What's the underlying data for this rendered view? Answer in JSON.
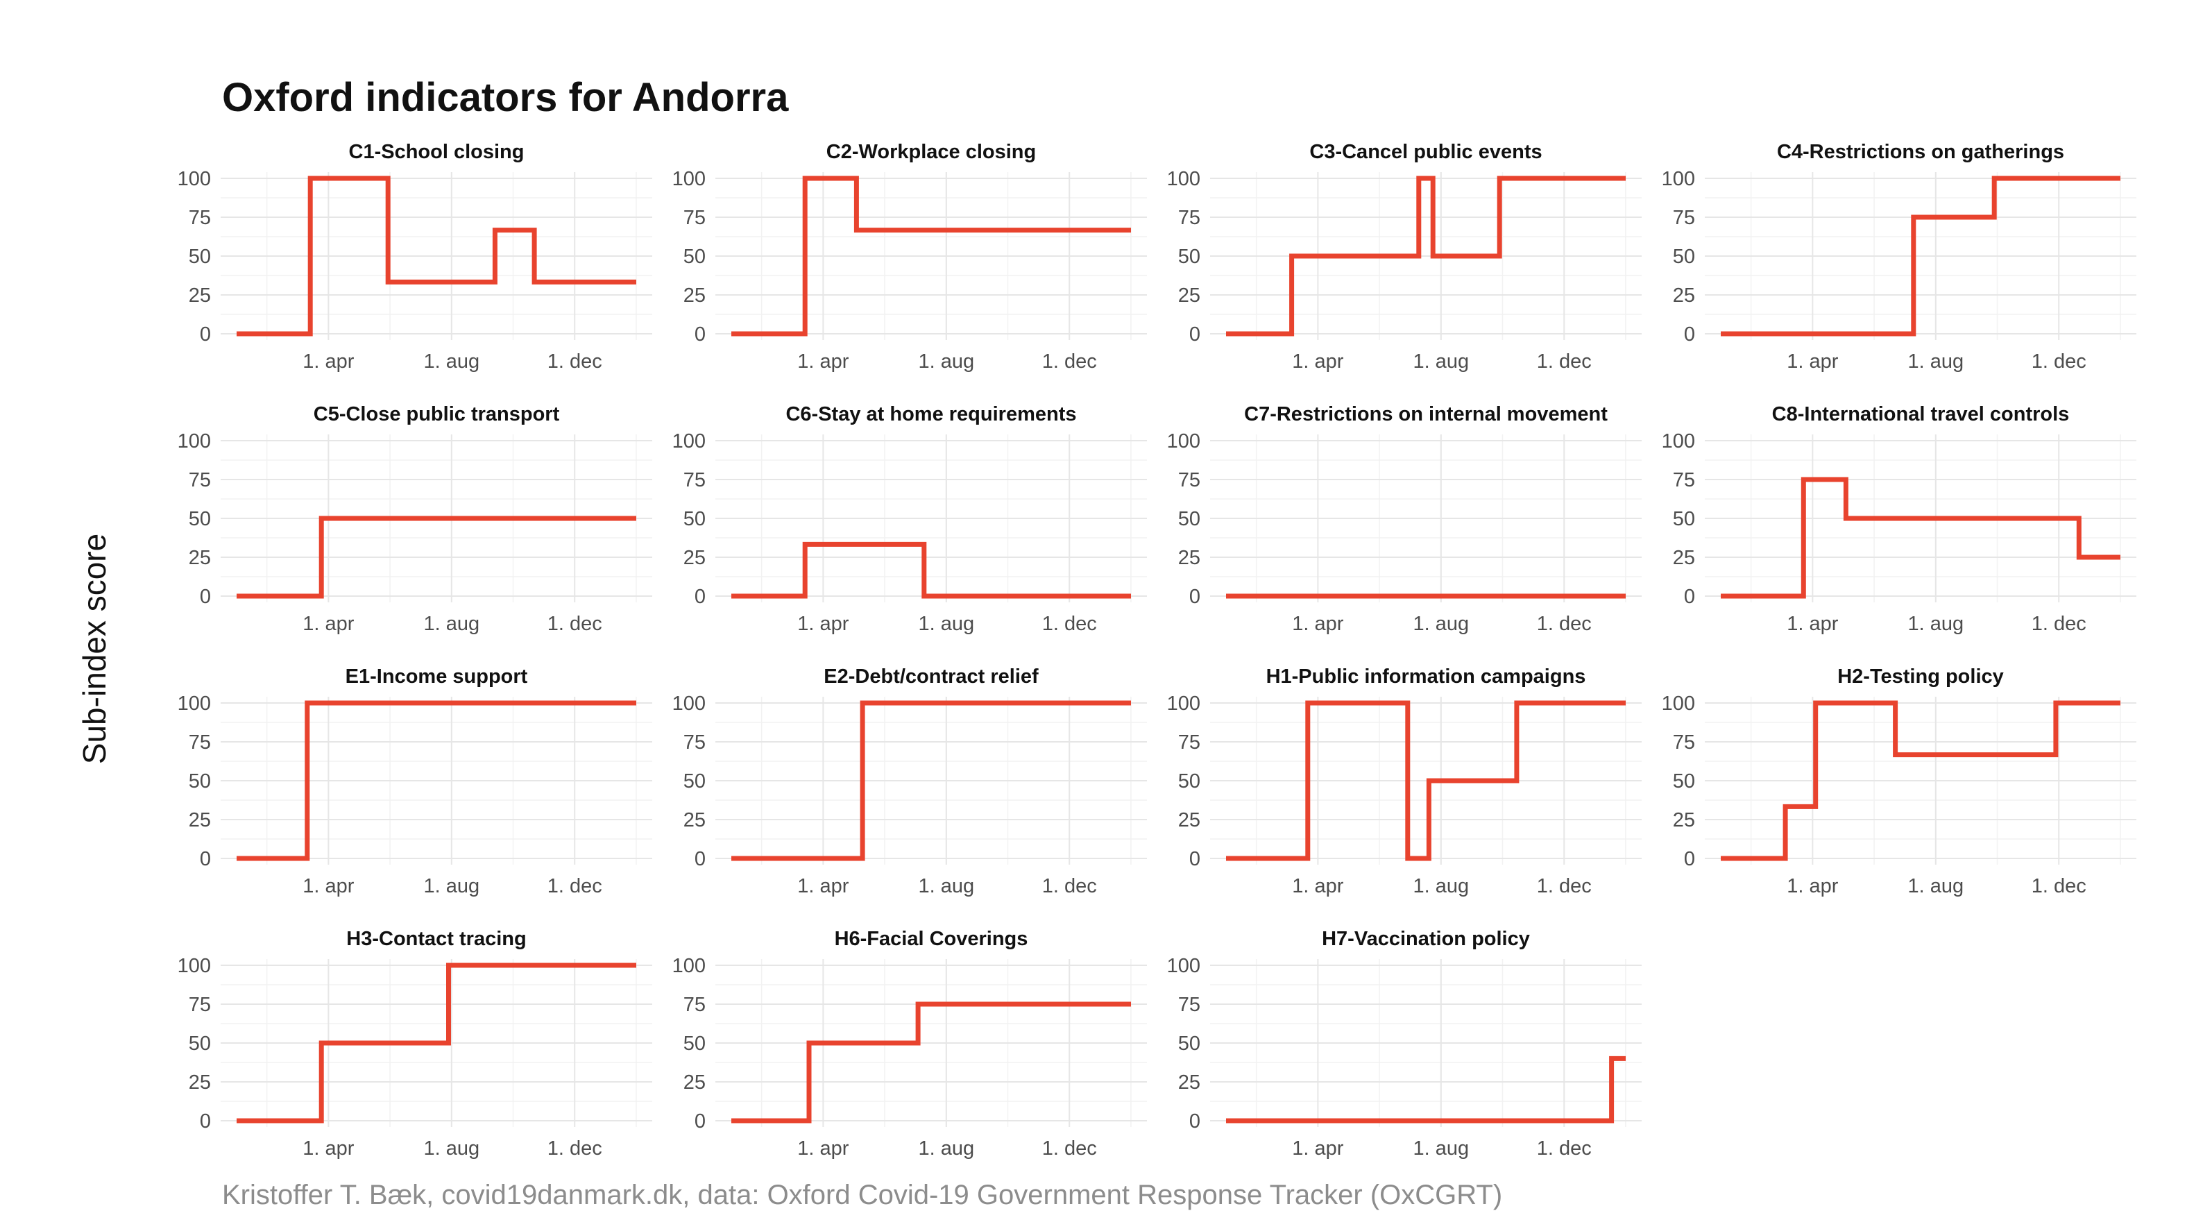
{
  "title": "Oxford indicators for Andorra",
  "ylabel": "Sub-index score",
  "caption": "Kristoffer T. Bæk, covid19danmark.dk, data: Oxford Covid-19 Government Response Tracker (OxCGRT)",
  "colors": {
    "series": "#e8432e"
  },
  "chart_data": {
    "type": "line",
    "facets": 4,
    "x_unit": "date",
    "x_range": [
      "2020-01-01",
      "2021-01-31"
    ],
    "xticks": [
      {
        "date": "2020-04-01",
        "label": "1. apr"
      },
      {
        "date": "2020-08-01",
        "label": "1. aug"
      },
      {
        "date": "2020-12-01",
        "label": "1. dec"
      }
    ],
    "yticks": [
      0,
      25,
      50,
      75,
      100
    ],
    "ylim": [
      0,
      100
    ],
    "panels": [
      {
        "title": "C1-School closing",
        "points": [
          [
            "2020-01-01",
            0
          ],
          [
            "2020-03-14",
            0
          ],
          [
            "2020-03-14",
            100
          ],
          [
            "2020-05-30",
            100
          ],
          [
            "2020-05-30",
            33.3
          ],
          [
            "2020-09-13",
            33.3
          ],
          [
            "2020-09-13",
            66.7
          ],
          [
            "2020-10-22",
            66.7
          ],
          [
            "2020-10-22",
            33.3
          ],
          [
            "2021-01-31",
            33.3
          ]
        ]
      },
      {
        "title": "C2-Workplace closing",
        "points": [
          [
            "2020-01-01",
            0
          ],
          [
            "2020-03-14",
            0
          ],
          [
            "2020-03-14",
            100
          ],
          [
            "2020-05-04",
            100
          ],
          [
            "2020-05-04",
            66.7
          ],
          [
            "2021-01-31",
            66.7
          ]
        ]
      },
      {
        "title": "C3-Cancel public events",
        "points": [
          [
            "2020-01-01",
            0
          ],
          [
            "2020-03-06",
            0
          ],
          [
            "2020-03-06",
            50
          ],
          [
            "2020-07-10",
            50
          ],
          [
            "2020-07-10",
            100
          ],
          [
            "2020-07-24",
            100
          ],
          [
            "2020-07-24",
            50
          ],
          [
            "2020-09-28",
            50
          ],
          [
            "2020-09-28",
            100
          ],
          [
            "2021-01-31",
            100
          ]
        ]
      },
      {
        "title": "C4-Restrictions on gatherings",
        "points": [
          [
            "2020-01-01",
            0
          ],
          [
            "2020-07-10",
            0
          ],
          [
            "2020-07-10",
            75
          ],
          [
            "2020-09-28",
            75
          ],
          [
            "2020-09-28",
            100
          ],
          [
            "2021-01-31",
            100
          ]
        ]
      },
      {
        "title": "C5-Close public transport",
        "points": [
          [
            "2020-01-01",
            0
          ],
          [
            "2020-03-25",
            0
          ],
          [
            "2020-03-25",
            50
          ],
          [
            "2021-01-31",
            50
          ]
        ]
      },
      {
        "title": "C6-Stay at home requirements",
        "points": [
          [
            "2020-01-01",
            0
          ],
          [
            "2020-03-14",
            0
          ],
          [
            "2020-03-14",
            33.3
          ],
          [
            "2020-07-10",
            33.3
          ],
          [
            "2020-07-10",
            0
          ],
          [
            "2021-01-31",
            0
          ]
        ]
      },
      {
        "title": "C7-Restrictions on internal movement",
        "points": [
          [
            "2020-01-01",
            0
          ],
          [
            "2021-01-31",
            0
          ]
        ]
      },
      {
        "title": "C8-International travel controls",
        "points": [
          [
            "2020-01-01",
            0
          ],
          [
            "2020-03-23",
            0
          ],
          [
            "2020-03-23",
            75
          ],
          [
            "2020-05-04",
            75
          ],
          [
            "2020-05-04",
            50
          ],
          [
            "2020-12-21",
            50
          ],
          [
            "2020-12-21",
            25
          ],
          [
            "2021-01-31",
            25
          ]
        ]
      },
      {
        "title": "E1-Income support",
        "points": [
          [
            "2020-01-01",
            0
          ],
          [
            "2020-03-11",
            0
          ],
          [
            "2020-03-11",
            100
          ],
          [
            "2021-01-31",
            100
          ]
        ]
      },
      {
        "title": "E2-Debt/contract relief",
        "points": [
          [
            "2020-01-01",
            0
          ],
          [
            "2020-05-10",
            0
          ],
          [
            "2020-05-10",
            100
          ],
          [
            "2021-01-31",
            100
          ]
        ]
      },
      {
        "title": "H1-Public information campaigns",
        "points": [
          [
            "2020-01-01",
            0
          ],
          [
            "2020-03-22",
            0
          ],
          [
            "2020-03-22",
            100
          ],
          [
            "2020-06-29",
            100
          ],
          [
            "2020-06-29",
            0
          ],
          [
            "2020-07-20",
            0
          ],
          [
            "2020-07-20",
            50
          ],
          [
            "2020-10-15",
            50
          ],
          [
            "2020-10-15",
            100
          ],
          [
            "2021-01-31",
            100
          ]
        ]
      },
      {
        "title": "H2-Testing policy",
        "points": [
          [
            "2020-01-01",
            0
          ],
          [
            "2020-03-05",
            0
          ],
          [
            "2020-03-05",
            33.3
          ],
          [
            "2020-04-04",
            33.3
          ],
          [
            "2020-04-04",
            100
          ],
          [
            "2020-06-22",
            100
          ],
          [
            "2020-06-22",
            66.7
          ],
          [
            "2020-11-28",
            66.7
          ],
          [
            "2020-11-28",
            100
          ],
          [
            "2021-01-31",
            100
          ]
        ]
      },
      {
        "title": "H3-Contact tracing",
        "points": [
          [
            "2020-01-01",
            0
          ],
          [
            "2020-03-25",
            0
          ],
          [
            "2020-03-25",
            50
          ],
          [
            "2020-07-29",
            50
          ],
          [
            "2020-07-29",
            100
          ],
          [
            "2021-01-31",
            100
          ]
        ]
      },
      {
        "title": "H6-Facial Coverings",
        "points": [
          [
            "2020-01-01",
            0
          ],
          [
            "2020-03-18",
            0
          ],
          [
            "2020-03-18",
            50
          ],
          [
            "2020-07-04",
            50
          ],
          [
            "2020-07-04",
            75
          ],
          [
            "2021-01-31",
            75
          ]
        ]
      },
      {
        "title": "H7-Vaccination policy",
        "points": [
          [
            "2020-01-01",
            0
          ],
          [
            "2021-01-17",
            0
          ],
          [
            "2021-01-17",
            40
          ],
          [
            "2021-01-31",
            40
          ]
        ]
      }
    ]
  }
}
